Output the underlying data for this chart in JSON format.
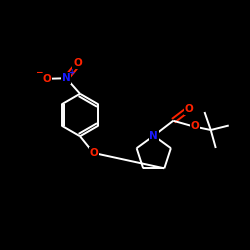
{
  "background_color": "#000000",
  "bond_color": "#ffffff",
  "O_color": "#ff2200",
  "N_color": "#1a1aff",
  "figsize": [
    2.5,
    2.5
  ],
  "dpi": 100,
  "xlim": [
    0,
    10
  ],
  "ylim": [
    0,
    10
  ]
}
